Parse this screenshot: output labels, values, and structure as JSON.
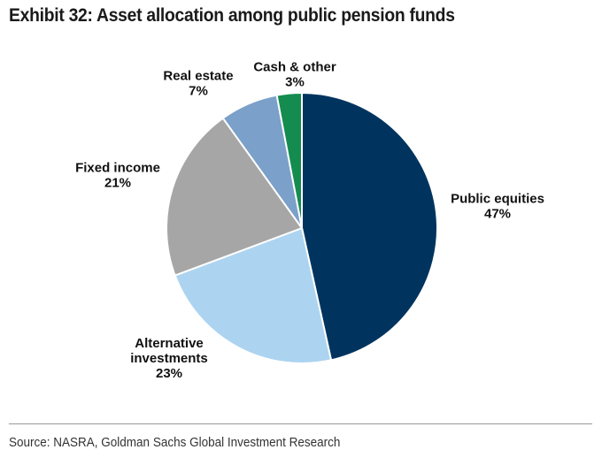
{
  "header": {
    "title": "Exhibit 32: Asset allocation among public pension funds"
  },
  "footer": {
    "source": "Source: NASRA, Goldman Sachs Global Investment Research"
  },
  "chart_data": {
    "type": "pie",
    "title": "Exhibit 32: Asset allocation among public pension funds",
    "unit": "%",
    "start": "12 o'clock, clockwise",
    "slices": [
      {
        "name": "Public equities",
        "label_lines": [
          "Public equities",
          "47%"
        ],
        "value": 47,
        "color": "#00345f"
      },
      {
        "name": "Alternative investments",
        "label_lines": [
          "Alternative",
          "investments",
          "23%"
        ],
        "value": 23,
        "color": "#acd4f1"
      },
      {
        "name": "Fixed income",
        "label_lines": [
          "Fixed income",
          "21%"
        ],
        "value": 21,
        "color": "#a6a6a6"
      },
      {
        "name": "Real estate",
        "label_lines": [
          "Real estate",
          "7%"
        ],
        "value": 7,
        "color": "#7ba0c9"
      },
      {
        "name": "Cash & other",
        "label_lines": [
          "Cash & other",
          "3%"
        ],
        "value": 3,
        "color": "#148c4f"
      }
    ]
  }
}
